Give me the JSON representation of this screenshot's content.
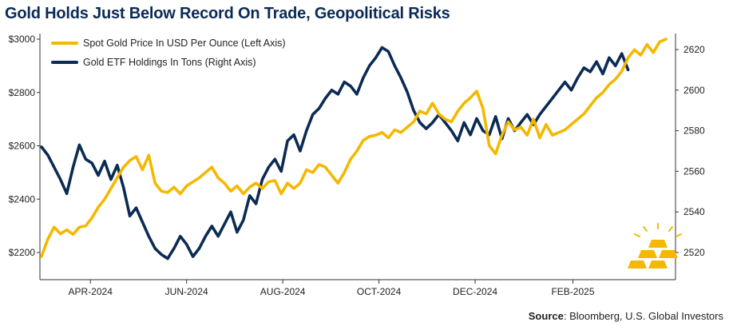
{
  "header": {
    "title": "Gold Holds Just Below Record On Trade, Geopolitical Risks"
  },
  "footer": {
    "source_label": "Source",
    "source_text": ": Bloomberg, U.S. Global Investors"
  },
  "colors": {
    "gold": "#f5b800",
    "etf": "#0b2b54",
    "title": "#0a2a55"
  },
  "chart_data": {
    "type": "line",
    "title": "Gold Holds Just Below Record On Trade, Geopolitical Risks",
    "x_tick_labels": [
      "APR-2024",
      "JUN-2024",
      "AUG-2024",
      "OCT-2024",
      "DEC-2024",
      "FEB-2025"
    ],
    "y_left": {
      "ticks": [
        "$2200",
        "$2400",
        "$2600",
        "$2800",
        "$3000"
      ],
      "range": [
        2150,
        3000
      ]
    },
    "y_right": {
      "ticks": [
        "2520",
        "2540",
        "2560",
        "2580",
        "2600",
        "2620"
      ],
      "range": [
        2513,
        2625
      ]
    },
    "legend_position": "top-left",
    "grid": false,
    "series": [
      {
        "name": "Spot Gold Price In USD Per Ounce (Left Axis)",
        "axis": "left",
        "color": "#f5b800",
        "points": [
          [
            "2024-03-01",
            2185
          ],
          [
            "2024-03-05",
            2250
          ],
          [
            "2024-03-09",
            2295
          ],
          [
            "2024-03-13",
            2270
          ],
          [
            "2024-03-17",
            2285
          ],
          [
            "2024-03-21",
            2268
          ],
          [
            "2024-03-25",
            2295
          ],
          [
            "2024-03-29",
            2300
          ],
          [
            "2024-04-02",
            2330
          ],
          [
            "2024-04-06",
            2370
          ],
          [
            "2024-04-10",
            2400
          ],
          [
            "2024-04-14",
            2440
          ],
          [
            "2024-04-18",
            2480
          ],
          [
            "2024-04-22",
            2520
          ],
          [
            "2024-04-26",
            2545
          ],
          [
            "2024-04-30",
            2560
          ],
          [
            "2024-05-04",
            2510
          ],
          [
            "2024-05-08",
            2565
          ],
          [
            "2024-05-12",
            2460
          ],
          [
            "2024-05-16",
            2430
          ],
          [
            "2024-05-20",
            2425
          ],
          [
            "2024-05-24",
            2445
          ],
          [
            "2024-05-28",
            2420
          ],
          [
            "2024-06-01",
            2450
          ],
          [
            "2024-06-05",
            2465
          ],
          [
            "2024-06-09",
            2480
          ],
          [
            "2024-06-13",
            2500
          ],
          [
            "2024-06-17",
            2520
          ],
          [
            "2024-06-21",
            2480
          ],
          [
            "2024-06-25",
            2460
          ],
          [
            "2024-06-29",
            2430
          ],
          [
            "2024-07-03",
            2450
          ],
          [
            "2024-07-07",
            2420
          ],
          [
            "2024-07-11",
            2445
          ],
          [
            "2024-07-15",
            2460
          ],
          [
            "2024-07-19",
            2440
          ],
          [
            "2024-07-23",
            2465
          ],
          [
            "2024-07-27",
            2470
          ],
          [
            "2024-07-31",
            2420
          ],
          [
            "2024-08-04",
            2460
          ],
          [
            "2024-08-08",
            2440
          ],
          [
            "2024-08-12",
            2460
          ],
          [
            "2024-08-16",
            2510
          ],
          [
            "2024-08-20",
            2500
          ],
          [
            "2024-08-24",
            2530
          ],
          [
            "2024-08-28",
            2520
          ],
          [
            "2024-09-01",
            2490
          ],
          [
            "2024-09-05",
            2460
          ],
          [
            "2024-09-09",
            2500
          ],
          [
            "2024-09-13",
            2550
          ],
          [
            "2024-09-17",
            2580
          ],
          [
            "2024-09-21",
            2620
          ],
          [
            "2024-09-25",
            2635
          ],
          [
            "2024-09-29",
            2640
          ],
          [
            "2024-10-03",
            2650
          ],
          [
            "2024-10-07",
            2630
          ],
          [
            "2024-10-11",
            2660
          ],
          [
            "2024-10-15",
            2650
          ],
          [
            "2024-10-19",
            2670
          ],
          [
            "2024-10-23",
            2690
          ],
          [
            "2024-10-27",
            2730
          ],
          [
            "2024-10-31",
            2720
          ],
          [
            "2024-11-04",
            2760
          ],
          [
            "2024-11-08",
            2720
          ],
          [
            "2024-11-12",
            2700
          ],
          [
            "2024-11-16",
            2690
          ],
          [
            "2024-11-20",
            2730
          ],
          [
            "2024-11-24",
            2760
          ],
          [
            "2024-11-28",
            2780
          ],
          [
            "2024-12-02",
            2805
          ],
          [
            "2024-12-06",
            2740
          ],
          [
            "2024-12-10",
            2600
          ],
          [
            "2024-12-14",
            2570
          ],
          [
            "2024-12-18",
            2640
          ],
          [
            "2024-12-22",
            2690
          ],
          [
            "2024-12-26",
            2660
          ],
          [
            "2024-12-30",
            2670
          ],
          [
            "2025-01-03",
            2640
          ],
          [
            "2025-01-07",
            2700
          ],
          [
            "2025-01-11",
            2630
          ],
          [
            "2025-01-15",
            2680
          ],
          [
            "2025-01-19",
            2640
          ],
          [
            "2025-01-23",
            2650
          ],
          [
            "2025-01-27",
            2660
          ],
          [
            "2025-01-31",
            2680
          ],
          [
            "2025-02-04",
            2700
          ],
          [
            "2025-02-08",
            2720
          ],
          [
            "2025-02-12",
            2750
          ],
          [
            "2025-02-16",
            2780
          ],
          [
            "2025-02-20",
            2800
          ],
          [
            "2025-02-24",
            2830
          ],
          [
            "2025-02-28",
            2850
          ],
          [
            "2025-03-04",
            2880
          ],
          [
            "2025-03-08",
            2930
          ],
          [
            "2025-03-12",
            2960
          ],
          [
            "2025-03-16",
            2940
          ],
          [
            "2025-03-20",
            2980
          ],
          [
            "2025-03-24",
            2950
          ],
          [
            "2025-03-28",
            2990
          ],
          [
            "2025-04-01",
            3000
          ]
        ]
      },
      {
        "name": "Gold ETF Holdings In Tons (Right Axis)",
        "axis": "right",
        "color": "#0b2b54",
        "points": [
          [
            "2024-03-01",
            2572
          ],
          [
            "2024-03-05",
            2568
          ],
          [
            "2024-03-09",
            2562
          ],
          [
            "2024-03-13",
            2556
          ],
          [
            "2024-03-17",
            2549
          ],
          [
            "2024-03-21",
            2562
          ],
          [
            "2024-03-25",
            2573
          ],
          [
            "2024-03-29",
            2566
          ],
          [
            "2024-04-02",
            2564
          ],
          [
            "2024-04-06",
            2558
          ],
          [
            "2024-04-10",
            2565
          ],
          [
            "2024-04-14",
            2556
          ],
          [
            "2024-04-18",
            2563
          ],
          [
            "2024-04-22",
            2552
          ],
          [
            "2024-04-26",
            2538
          ],
          [
            "2024-04-30",
            2542
          ],
          [
            "2024-05-04",
            2535
          ],
          [
            "2024-05-08",
            2528
          ],
          [
            "2024-05-12",
            2522
          ],
          [
            "2024-05-16",
            2519
          ],
          [
            "2024-05-20",
            2517
          ],
          [
            "2024-05-24",
            2522
          ],
          [
            "2024-05-28",
            2528
          ],
          [
            "2024-06-01",
            2524
          ],
          [
            "2024-06-05",
            2518
          ],
          [
            "2024-06-09",
            2522
          ],
          [
            "2024-06-13",
            2528
          ],
          [
            "2024-06-17",
            2533
          ],
          [
            "2024-06-21",
            2528
          ],
          [
            "2024-06-25",
            2534
          ],
          [
            "2024-06-29",
            2540
          ],
          [
            "2024-07-03",
            2530
          ],
          [
            "2024-07-07",
            2536
          ],
          [
            "2024-07-11",
            2548
          ],
          [
            "2024-07-15",
            2544
          ],
          [
            "2024-07-19",
            2556
          ],
          [
            "2024-07-23",
            2562
          ],
          [
            "2024-07-27",
            2566
          ],
          [
            "2024-07-31",
            2560
          ],
          [
            "2024-08-04",
            2575
          ],
          [
            "2024-08-08",
            2578
          ],
          [
            "2024-08-12",
            2570
          ],
          [
            "2024-08-16",
            2580
          ],
          [
            "2024-08-20",
            2588
          ],
          [
            "2024-08-24",
            2591
          ],
          [
            "2024-08-28",
            2596
          ],
          [
            "2024-09-01",
            2600
          ],
          [
            "2024-09-05",
            2598
          ],
          [
            "2024-09-09",
            2604
          ],
          [
            "2024-09-13",
            2602
          ],
          [
            "2024-09-17",
            2598
          ],
          [
            "2024-09-21",
            2606
          ],
          [
            "2024-09-25",
            2612
          ],
          [
            "2024-09-29",
            2616
          ],
          [
            "2024-10-03",
            2621
          ],
          [
            "2024-10-07",
            2619
          ],
          [
            "2024-10-11",
            2612
          ],
          [
            "2024-10-15",
            2606
          ],
          [
            "2024-10-19",
            2599
          ],
          [
            "2024-10-23",
            2590
          ],
          [
            "2024-10-27",
            2584
          ],
          [
            "2024-10-31",
            2581
          ],
          [
            "2024-11-04",
            2584
          ],
          [
            "2024-11-08",
            2588
          ],
          [
            "2024-11-12",
            2584
          ],
          [
            "2024-11-16",
            2580
          ],
          [
            "2024-11-20",
            2575
          ],
          [
            "2024-11-24",
            2584
          ],
          [
            "2024-11-28",
            2578
          ],
          [
            "2024-12-02",
            2586
          ],
          [
            "2024-12-06",
            2580
          ],
          [
            "2024-12-10",
            2578
          ],
          [
            "2024-12-14",
            2587
          ],
          [
            "2024-12-18",
            2576
          ],
          [
            "2024-12-22",
            2586
          ],
          [
            "2024-12-26",
            2580
          ],
          [
            "2024-12-30",
            2584
          ],
          [
            "2025-01-03",
            2588
          ],
          [
            "2025-01-07",
            2583
          ],
          [
            "2025-01-11",
            2588
          ],
          [
            "2025-01-15",
            2592
          ],
          [
            "2025-01-19",
            2596
          ],
          [
            "2025-01-23",
            2600
          ],
          [
            "2025-01-27",
            2604
          ],
          [
            "2025-01-31",
            2600
          ],
          [
            "2025-02-04",
            2606
          ],
          [
            "2025-02-08",
            2611
          ],
          [
            "2025-02-12",
            2609
          ],
          [
            "2025-02-16",
            2614
          ],
          [
            "2025-02-20",
            2608
          ],
          [
            "2025-02-24",
            2616
          ],
          [
            "2025-02-28",
            2612
          ],
          [
            "2025-03-04",
            2618
          ],
          [
            "2025-03-08",
            2610
          ]
        ]
      }
    ]
  }
}
